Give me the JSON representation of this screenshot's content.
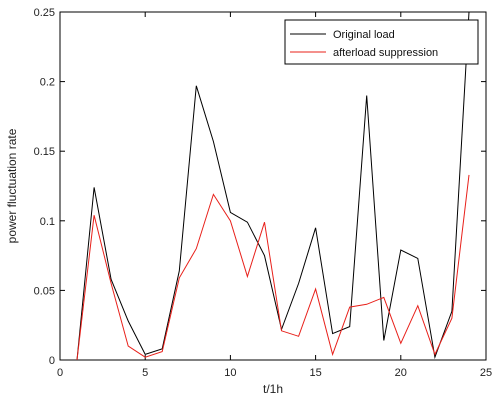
{
  "chart_data": {
    "type": "line",
    "title": "",
    "xlabel": "t/1h",
    "ylabel": "power fluctuation rate",
    "xlim": [
      0,
      25
    ],
    "ylim": [
      0,
      0.25
    ],
    "xticks": [
      0,
      5,
      10,
      15,
      20,
      25
    ],
    "yticks": [
      0,
      0.05,
      0.1,
      0.15,
      0.2,
      0.25
    ],
    "xtick_labels": [
      "0",
      "5",
      "10",
      "15",
      "20",
      "25"
    ],
    "ytick_labels": [
      "0",
      "0.05",
      "0.1",
      "0.15",
      "0.2",
      "0.25"
    ],
    "grid": false,
    "legend_position": "top-right",
    "series": [
      {
        "name": "Original load",
        "color": "#000000",
        "x": [
          1,
          2,
          3,
          4,
          5,
          6,
          7,
          8,
          9,
          10,
          11,
          12,
          13,
          14,
          15,
          16,
          17,
          18,
          19,
          20,
          21,
          22,
          23,
          24
        ],
        "values": [
          0.0,
          0.124,
          0.058,
          0.028,
          0.004,
          0.008,
          0.064,
          0.197,
          0.157,
          0.106,
          0.099,
          0.075,
          0.022,
          0.055,
          0.095,
          0.019,
          0.024,
          0.19,
          0.014,
          0.079,
          0.073,
          0.002,
          0.035,
          0.25
        ]
      },
      {
        "name": "afterload suppression",
        "color": "#e8201a",
        "x": [
          1,
          2,
          3,
          4,
          5,
          6,
          7,
          8,
          9,
          10,
          11,
          12,
          13,
          14,
          15,
          16,
          17,
          18,
          19,
          20,
          21,
          22,
          23,
          24
        ],
        "values": [
          0.0,
          0.104,
          0.055,
          0.01,
          0.002,
          0.006,
          0.059,
          0.08,
          0.119,
          0.1,
          0.06,
          0.099,
          0.021,
          0.017,
          0.051,
          0.004,
          0.038,
          0.04,
          0.045,
          0.012,
          0.039,
          0.004,
          0.03,
          0.133
        ]
      }
    ]
  }
}
